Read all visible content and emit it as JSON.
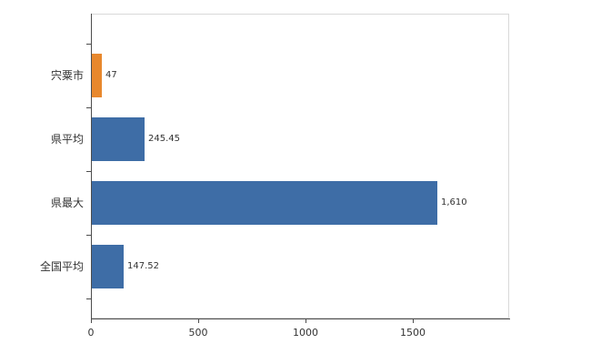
{
  "chart_data": {
    "type": "bar",
    "orientation": "horizontal",
    "title": "",
    "xlabel": "",
    "ylabel": "",
    "categories": [
      "宍粟市",
      "県平均",
      "県最大",
      "全国平均"
    ],
    "values": [
      47,
      245.45,
      1610,
      147.52
    ],
    "value_labels": [
      "47",
      "245.45",
      "1,610",
      "147.52"
    ],
    "bar_colors": [
      "#e8882d",
      "#3e6da6",
      "#3e6da6",
      "#3e6da6"
    ],
    "x_ticks": [
      0,
      500,
      1000,
      1500
    ],
    "x_tick_labels": [
      "0",
      "500",
      "1000",
      "1500"
    ],
    "xlim": [
      0,
      1950
    ],
    "grid": false,
    "legend": false
  },
  "style": {
    "axis_color": "#4d4d4d",
    "plot_border_color": "#d9d9d9",
    "label_color": "#333333",
    "background": "#ffffff"
  }
}
